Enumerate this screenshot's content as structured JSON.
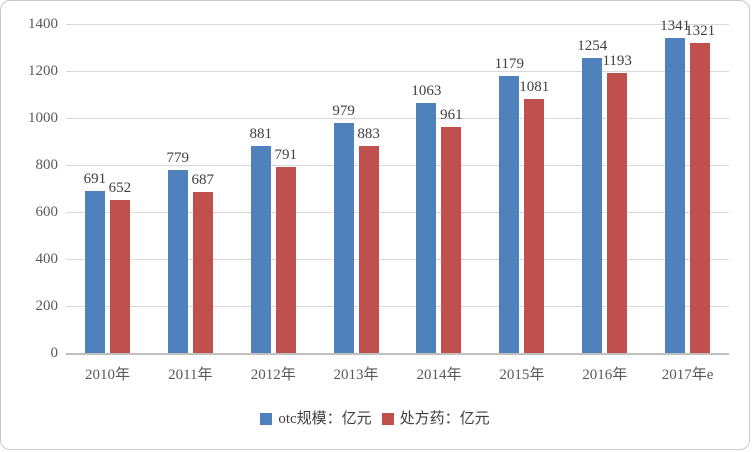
{
  "chart_data": {
    "type": "bar",
    "title": "",
    "categories": [
      "2010年",
      "2011年",
      "2012年",
      "2013年",
      "2014年",
      "2015年",
      "2016年",
      "2017年e"
    ],
    "series": [
      {
        "name": "otc规模：亿元",
        "color": "#4F81BD",
        "values": [
          691,
          779,
          881,
          979,
          1063,
          1179,
          1254,
          1341
        ]
      },
      {
        "name": "处方药：亿元",
        "color": "#C0504D",
        "values": [
          652,
          687,
          791,
          883,
          961,
          1081,
          1193,
          1321
        ]
      }
    ],
    "ylim": [
      0,
      1400
    ],
    "ytick_step": 200,
    "yticks": [
      0,
      200,
      400,
      600,
      800,
      1000,
      1200,
      1400
    ],
    "grid": true,
    "legend_position": "bottom",
    "data_labels": true
  },
  "colors": {
    "background": "#FFFFFF",
    "frame_border": "#C9C9C9",
    "gridline": "#D9D9D9",
    "axis_line": "#BFBFBF",
    "tick_text": "#595959",
    "data_label_text": "#404040",
    "legend_text": "#404040",
    "series_blue": "#4F81BD",
    "series_red": "#C0504D"
  }
}
